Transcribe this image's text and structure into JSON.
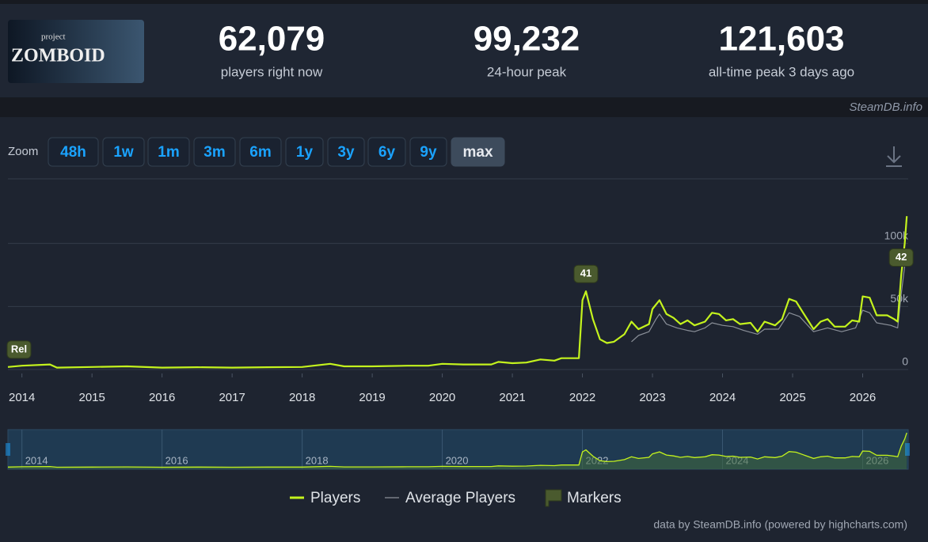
{
  "header": {
    "logo": {
      "small": "project",
      "big": "ZOMBOID"
    },
    "stats": [
      {
        "value": "62,079",
        "label": "players right now"
      },
      {
        "value": "99,232",
        "label": "24-hour peak"
      },
      {
        "value": "121,603",
        "label": "all-time peak 3 days ago"
      }
    ],
    "source": "SteamDB.info"
  },
  "zoom": {
    "label": "Zoom",
    "buttons": [
      "48h",
      "1w",
      "1m",
      "3m",
      "6m",
      "1y",
      "3y",
      "6y",
      "9y",
      "max"
    ],
    "selected": 9
  },
  "credit": "data by SteamDB.info (powered by highcharts.com)",
  "chart_data": {
    "type": "line",
    "xlim": [
      2013.8,
      2026.65
    ],
    "xticks": [
      2014,
      2015,
      2016,
      2017,
      2018,
      2019,
      2020,
      2021,
      2022,
      2023,
      2024,
      2025,
      2026
    ],
    "ylim": [
      0,
      150000
    ],
    "yticks": [
      0,
      {
        "value": 50000,
        "label": "50k"
      },
      {
        "value": 100000,
        "label": "100k"
      }
    ],
    "grid": true,
    "navigator_ticks": [
      2014,
      2016,
      2018,
      2020,
      2022,
      2024,
      2026
    ],
    "series": [
      {
        "name": "Players",
        "color": "#c4f31d",
        "x": [
          2013.8,
          2014.0,
          2014.4,
          2014.5,
          2015.0,
          2015.5,
          2016.0,
          2016.5,
          2017.0,
          2017.5,
          2018.0,
          2018.4,
          2018.6,
          2019.0,
          2019.5,
          2019.8,
          2020.0,
          2020.3,
          2020.7,
          2020.8,
          2021.0,
          2021.2,
          2021.4,
          2021.6,
          2021.7,
          2021.95,
          2022.0,
          2022.05,
          2022.15,
          2022.25,
          2022.35,
          2022.45,
          2022.6,
          2022.7,
          2022.8,
          2022.95,
          2023.0,
          2023.1,
          2023.2,
          2023.3,
          2023.4,
          2023.5,
          2023.6,
          2023.75,
          2023.85,
          2023.95,
          2024.05,
          2024.15,
          2024.25,
          2024.4,
          2024.5,
          2024.6,
          2024.75,
          2024.85,
          2024.95,
          2025.05,
          2025.15,
          2025.3,
          2025.4,
          2025.5,
          2025.6,
          2025.75,
          2025.85,
          2025.95,
          2026.0,
          2026.1,
          2026.2,
          2026.35,
          2026.45,
          2026.5,
          2026.55,
          2026.6,
          2026.63
        ],
        "values": [
          2000,
          3000,
          4000,
          1500,
          2000,
          2500,
          1500,
          1800,
          1500,
          1800,
          2000,
          4500,
          2500,
          2500,
          3000,
          3000,
          4500,
          4000,
          4000,
          6000,
          5000,
          5500,
          8000,
          7000,
          9000,
          9000,
          55000,
          62000,
          40000,
          24000,
          21000,
          22000,
          28000,
          38000,
          32000,
          36000,
          48000,
          55000,
          44000,
          41000,
          36000,
          39000,
          35000,
          38000,
          45000,
          44000,
          39000,
          40000,
          36000,
          37000,
          30000,
          38000,
          35000,
          40000,
          56000,
          54000,
          45000,
          32000,
          38000,
          40000,
          34000,
          34000,
          39000,
          38000,
          58000,
          57000,
          43000,
          43000,
          40000,
          38000,
          75000,
          100000,
          121603
        ]
      },
      {
        "name": "Average Players",
        "color": "#8a8f98",
        "x": [
          2022.7,
          2022.8,
          2022.95,
          2023.05,
          2023.1,
          2023.2,
          2023.35,
          2023.5,
          2023.6,
          2023.75,
          2023.85,
          2024.0,
          2024.15,
          2024.3,
          2024.5,
          2024.6,
          2024.8,
          2024.95,
          2025.1,
          2025.3,
          2025.5,
          2025.7,
          2025.9,
          2026.0,
          2026.1,
          2026.2,
          2026.4,
          2026.5,
          2026.55,
          2026.63
        ],
        "values": [
          22000,
          27000,
          30000,
          40000,
          44000,
          36000,
          33000,
          31000,
          30000,
          33000,
          37000,
          35000,
          34000,
          31000,
          28000,
          32000,
          32000,
          45000,
          42000,
          30000,
          33000,
          30000,
          33000,
          47000,
          45000,
          37000,
          35000,
          33000,
          60000,
          95000
        ]
      }
    ],
    "markers": {
      "name": "Markers",
      "items": [
        {
          "label": "Rel",
          "x": 2013.8
        },
        {
          "label": "41",
          "x": 2022.05
        },
        {
          "label": "42",
          "x": 2026.55
        }
      ]
    }
  }
}
